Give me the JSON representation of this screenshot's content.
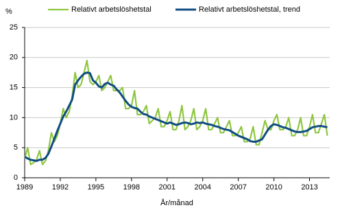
{
  "chart_data": {
    "type": "line",
    "y_unit": "%",
    "x_label": "År/månad",
    "x": [
      1989,
      1989.25,
      1989.5,
      1989.75,
      1990,
      1990.25,
      1990.5,
      1990.75,
      1991,
      1991.25,
      1991.5,
      1991.75,
      1992,
      1992.25,
      1992.5,
      1992.75,
      1993,
      1993.25,
      1993.5,
      1993.75,
      1994,
      1994.25,
      1994.5,
      1994.75,
      1995,
      1995.25,
      1995.5,
      1995.75,
      1996,
      1996.25,
      1996.5,
      1996.75,
      1997,
      1997.25,
      1997.5,
      1997.75,
      1998,
      1998.25,
      1998.5,
      1998.75,
      1999,
      1999.25,
      1999.5,
      1999.75,
      2000,
      2000.25,
      2000.5,
      2000.75,
      2001,
      2001.25,
      2001.5,
      2001.75,
      2002,
      2002.25,
      2002.5,
      2002.75,
      2003,
      2003.25,
      2003.5,
      2003.75,
      2004,
      2004.25,
      2004.5,
      2004.75,
      2005,
      2005.25,
      2005.5,
      2005.75,
      2006,
      2006.25,
      2006.5,
      2006.75,
      2007,
      2007.25,
      2007.5,
      2007.75,
      2008,
      2008.25,
      2008.5,
      2008.75,
      2009,
      2009.25,
      2009.5,
      2009.75,
      2010,
      2010.25,
      2010.5,
      2010.75,
      2011,
      2011.25,
      2011.5,
      2011.75,
      2012,
      2012.25,
      2012.5,
      2012.75,
      2013,
      2013.25,
      2013.5,
      2013.75,
      2014,
      2014.25,
      2014.5
    ],
    "series": [
      {
        "name": "Relativt arbetslöshetstal",
        "color": "#8dc63f",
        "width": 2.2,
        "values": [
          3.2,
          5.0,
          2.2,
          2.5,
          3.0,
          4.5,
          2.2,
          2.8,
          4.5,
          7.5,
          6.0,
          7.0,
          9.0,
          11.5,
          10.0,
          11.0,
          13.5,
          17.5,
          15.0,
          15.5,
          17.5,
          19.5,
          16.0,
          15.5,
          16.0,
          17.0,
          14.5,
          15.0,
          16.0,
          17.0,
          14.5,
          14.5,
          14.5,
          15.0,
          11.5,
          11.5,
          12.0,
          14.5,
          10.5,
          10.5,
          11.0,
          12.0,
          9.0,
          9.5,
          10.0,
          11.5,
          8.5,
          8.5,
          9.5,
          11.0,
          8.0,
          8.0,
          9.5,
          12.0,
          8.0,
          8.5,
          9.5,
          11.5,
          8.0,
          8.5,
          9.5,
          11.5,
          8.0,
          8.0,
          9.0,
          10.0,
          7.5,
          7.5,
          8.5,
          9.5,
          7.0,
          7.0,
          7.5,
          8.5,
          6.0,
          6.0,
          6.5,
          8.5,
          5.5,
          5.5,
          7.5,
          9.5,
          8.0,
          8.0,
          9.5,
          10.5,
          8.0,
          8.0,
          8.5,
          10.0,
          7.0,
          7.0,
          8.0,
          10.0,
          7.0,
          7.0,
          8.5,
          10.5,
          7.5,
          7.5,
          9.0,
          10.5,
          7.0
        ]
      },
      {
        "name": "Relativt arbetslöshetstal, trend",
        "color": "#0f4c81",
        "width": 3,
        "values": [
          3.5,
          3.2,
          3.0,
          2.9,
          2.8,
          3.0,
          3.0,
          3.3,
          4.0,
          5.2,
          6.5,
          7.8,
          9.0,
          10.2,
          11.0,
          12.0,
          13.0,
          15.5,
          16.2,
          16.8,
          17.3,
          17.5,
          17.4,
          16.2,
          15.8,
          15.2,
          15.0,
          15.6,
          15.8,
          15.5,
          15.3,
          14.7,
          14.2,
          13.5,
          12.8,
          12.2,
          11.8,
          11.6,
          11.5,
          11.0,
          10.6,
          10.5,
          10.2,
          10.0,
          9.8,
          9.6,
          9.4,
          9.2,
          9.0,
          9.2,
          9.0,
          8.8,
          8.9,
          9.1,
          9.2,
          9.1,
          8.9,
          9.0,
          9.2,
          9.1,
          9.2,
          9.0,
          8.9,
          8.8,
          8.6,
          8.5,
          8.3,
          8.1,
          8.0,
          7.9,
          7.6,
          7.3,
          7.0,
          6.8,
          6.6,
          6.4,
          6.1,
          6.0,
          6.0,
          6.2,
          6.4,
          7.2,
          8.0,
          8.6,
          8.9,
          8.8,
          8.6,
          8.4,
          8.3,
          8.1,
          7.9,
          7.7,
          7.6,
          7.6,
          7.7,
          7.8,
          8.1,
          8.4,
          8.5,
          8.6,
          8.6,
          8.5,
          8.4
        ]
      }
    ],
    "xlim": [
      1989,
      2014.7
    ],
    "xticks": [
      1989,
      1992,
      1995,
      1998,
      2001,
      2004,
      2007,
      2010,
      2013
    ],
    "ylim": [
      0,
      25
    ],
    "yticks": [
      0,
      5,
      10,
      15,
      20,
      25
    ],
    "grid": true
  }
}
